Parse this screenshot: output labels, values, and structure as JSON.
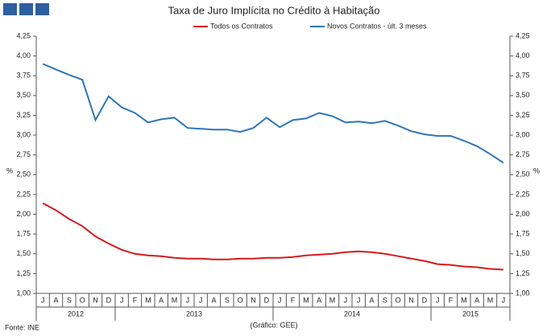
{
  "chart_data": {
    "type": "line",
    "title": "Taxa de Juro Implícita no Crédito à Habitação",
    "y_label": "%",
    "categories": [
      "J",
      "A",
      "S",
      "O",
      "N",
      "D",
      "J",
      "F",
      "M",
      "A",
      "M",
      "J",
      "J",
      "A",
      "S",
      "O",
      "N",
      "D",
      "J",
      "F",
      "M",
      "A",
      "M",
      "J",
      "J",
      "A",
      "S",
      "O",
      "N",
      "D",
      "J",
      "F",
      "M",
      "A",
      "M",
      "J"
    ],
    "years": [
      "2012",
      "2013",
      "2014",
      "2015"
    ],
    "series": [
      {
        "name": "Todos os Contratos",
        "color": "#d7191c",
        "values": [
          2.14,
          2.05,
          1.94,
          1.85,
          1.72,
          1.63,
          1.55,
          1.5,
          1.48,
          1.47,
          1.45,
          1.44,
          1.44,
          1.43,
          1.43,
          1.44,
          1.44,
          1.45,
          1.45,
          1.46,
          1.48,
          1.49,
          1.5,
          1.52,
          1.53,
          1.52,
          1.5,
          1.47,
          1.44,
          1.41,
          1.37,
          1.36,
          1.34,
          1.33,
          1.31,
          1.3
        ]
      },
      {
        "name": "Novos Contratos - últ. 3 meses",
        "color": "#2e75b6",
        "values": [
          3.9,
          3.83,
          3.76,
          3.7,
          3.19,
          3.49,
          3.35,
          3.28,
          3.16,
          3.2,
          3.22,
          3.09,
          3.08,
          3.07,
          3.07,
          3.04,
          3.09,
          3.22,
          3.1,
          3.19,
          3.21,
          3.28,
          3.24,
          3.16,
          3.17,
          3.15,
          3.18,
          3.12,
          3.05,
          3.01,
          2.99,
          2.99,
          2.93,
          2.86,
          2.76,
          2.65
        ]
      }
    ],
    "ylim": [
      1,
      4.25
    ],
    "yticks": [
      {
        "value": 1,
        "label": "1,00"
      },
      {
        "value": 1.25,
        "label": "1,25"
      },
      {
        "value": 1.5,
        "label": "1,50"
      },
      {
        "value": 1.75,
        "label": "1,75"
      },
      {
        "value": 2,
        "label": "2,00"
      },
      {
        "value": 2.25,
        "label": "2,25"
      },
      {
        "value": 2.5,
        "label": "2,50"
      },
      {
        "value": 2.75,
        "label": "2,75"
      },
      {
        "value": 3,
        "label": "3,00"
      },
      {
        "value": 3.25,
        "label": "3,25"
      },
      {
        "value": 3.5,
        "label": "3,50"
      },
      {
        "value": 3.75,
        "label": "3,75"
      },
      {
        "value": 4,
        "label": "4,00"
      },
      {
        "value": 4.25,
        "label": "4,25"
      }
    ],
    "source": "Fonte: INE",
    "credit": "(Gráfico: GEE)"
  }
}
